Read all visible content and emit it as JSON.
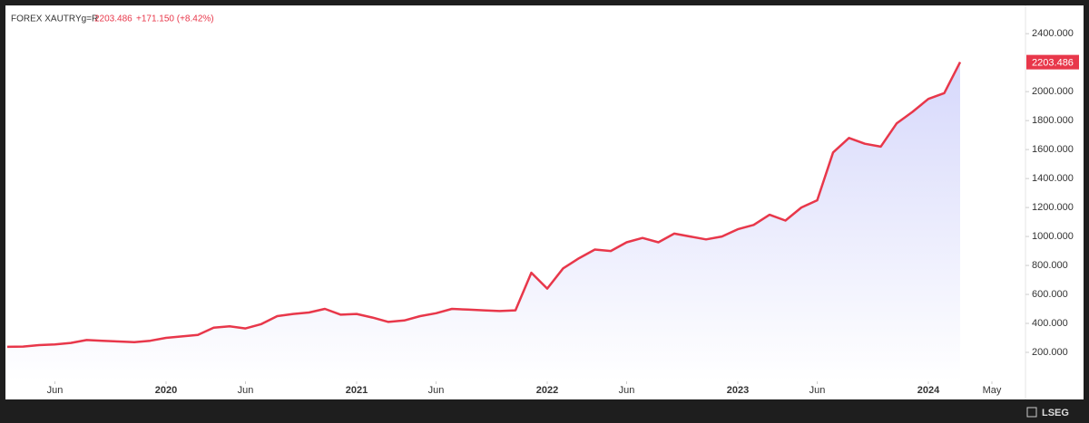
{
  "chart_data": {
    "type": "line",
    "symbol": "FOREX XAUTRYg=R",
    "change": "+171.150 (+8.42%)",
    "brand": "LSEG",
    "color": "#e8374a",
    "x": [
      "2019-03",
      "2019-04",
      "2019-05",
      "2019-06",
      "2019-07",
      "2019-08",
      "2019-09",
      "2019-10",
      "2019-11",
      "2019-12",
      "2020-01",
      "2020-02",
      "2020-03",
      "2020-04",
      "2020-05",
      "2020-06",
      "2020-07",
      "2020-08",
      "2020-09",
      "2020-10",
      "2020-11",
      "2020-12",
      "2021-01",
      "2021-02",
      "2021-03",
      "2021-04",
      "2021-05",
      "2021-06",
      "2021-07",
      "2021-08",
      "2021-09",
      "2021-10",
      "2021-11",
      "2021-12",
      "2022-01",
      "2022-02",
      "2022-03",
      "2022-04",
      "2022-05",
      "2022-06",
      "2022-07",
      "2022-08",
      "2022-09",
      "2022-10",
      "2022-11",
      "2022-12",
      "2023-01",
      "2023-02",
      "2023-03",
      "2023-04",
      "2023-05",
      "2023-06",
      "2023-07",
      "2023-08",
      "2023-09",
      "2023-10",
      "2023-11",
      "2023-12",
      "2024-01",
      "2024-02",
      "2024-03"
    ],
    "values": [
      238,
      240,
      250,
      255,
      265,
      285,
      280,
      275,
      270,
      280,
      300,
      310,
      320,
      370,
      380,
      365,
      395,
      450,
      465,
      475,
      500,
      460,
      465,
      440,
      410,
      420,
      450,
      470,
      500,
      495,
      490,
      485,
      490,
      750,
      640,
      780,
      850,
      910,
      900,
      960,
      990,
      960,
      1020,
      1000,
      980,
      1000,
      1050,
      1080,
      1150,
      1110,
      1200,
      1250,
      1580,
      1680,
      1640,
      1620,
      1780,
      1860,
      1950,
      1990,
      2203.486
    ],
    "xlim": [
      "2019-03",
      "2024-07"
    ],
    "xticks": [
      {
        "value": "2019-06",
        "label": "Jun"
      },
      {
        "value": "2020-01",
        "label": "2020"
      },
      {
        "value": "2020-06",
        "label": "Jun"
      },
      {
        "value": "2021-01",
        "label": "2021"
      },
      {
        "value": "2021-06",
        "label": "Jun"
      },
      {
        "value": "2022-01",
        "label": "2022"
      },
      {
        "value": "2022-06",
        "label": "Jun"
      },
      {
        "value": "2023-01",
        "label": "2023"
      },
      {
        "value": "2023-06",
        "label": "Jun"
      },
      {
        "value": "2024-01",
        "label": "2024"
      },
      {
        "value": "2024-05",
        "label": "May"
      }
    ],
    "ylim": [
      0,
      2570
    ],
    "yticks": [
      {
        "value": 200,
        "label": "200.000"
      },
      {
        "value": 400,
        "label": "400.000"
      },
      {
        "value": 600,
        "label": "600.000"
      },
      {
        "value": 800,
        "label": "800.000"
      },
      {
        "value": 1000,
        "label": "1000.000"
      },
      {
        "value": 1200,
        "label": "1200.000"
      },
      {
        "value": 1400,
        "label": "1400.000"
      },
      {
        "value": 1600,
        "label": "1600.000"
      },
      {
        "value": 1800,
        "label": "1800.000"
      },
      {
        "value": 2000,
        "label": "2000.000"
      },
      {
        "value": 2400,
        "label": "2400.000"
      }
    ],
    "grid": false
  }
}
